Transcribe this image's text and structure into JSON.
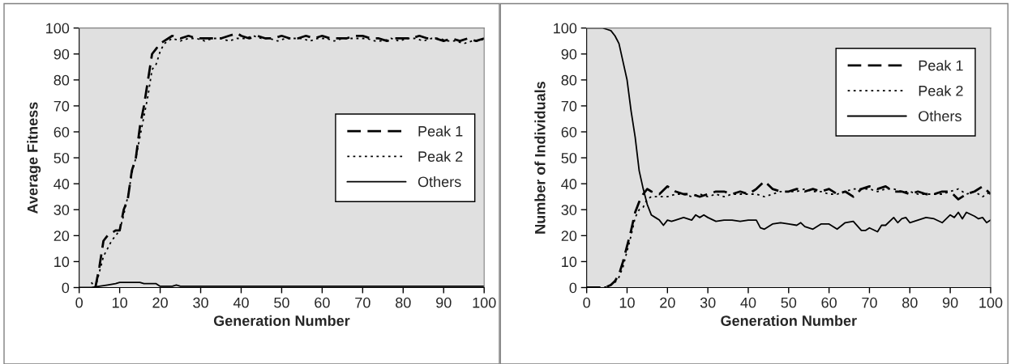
{
  "chart_data": [
    {
      "type": "line",
      "xlabel": "Generation Number",
      "ylabel": "Average Fitness",
      "xlim": [
        0,
        100
      ],
      "ylim": [
        0,
        100
      ],
      "xticks": [
        0,
        10,
        20,
        30,
        40,
        50,
        60,
        70,
        80,
        90,
        100
      ],
      "yticks": [
        0,
        10,
        20,
        30,
        40,
        50,
        60,
        70,
        80,
        90,
        100
      ],
      "grid": false,
      "legend": "right",
      "marker": "none",
      "series": [
        {
          "name": "Peak 1",
          "color": "#000000",
          "line_style": "dashed",
          "x": [
            4,
            5,
            6,
            7,
            8,
            9,
            10,
            11,
            12,
            13,
            14,
            15,
            16,
            17,
            18,
            19,
            20,
            21,
            22,
            23,
            25,
            27,
            29,
            31,
            33,
            35,
            37,
            39,
            40,
            42,
            44,
            46,
            48,
            50,
            52,
            54,
            56,
            58,
            60,
            62,
            64,
            66,
            68,
            70,
            72,
            74,
            76,
            78,
            80,
            82,
            84,
            86,
            88,
            90,
            92,
            94,
            96,
            98,
            100
          ],
          "values": [
            0,
            8,
            18,
            20,
            21,
            22,
            22,
            30,
            34,
            45,
            50,
            62,
            70,
            80,
            90,
            92,
            94,
            95,
            96,
            97,
            96,
            97,
            96,
            96,
            96,
            96,
            97,
            98,
            97,
            96,
            97,
            96,
            96,
            97,
            96,
            96,
            97,
            96,
            97,
            96,
            96,
            96,
            97,
            97,
            96,
            96,
            95,
            96,
            96,
            96,
            97,
            96,
            96,
            95,
            96,
            95,
            96,
            95,
            96
          ]
        },
        {
          "name": "Peak 2",
          "color": "#000000",
          "line_style": "dotted",
          "x": [
            3,
            4,
            5,
            6,
            7,
            8,
            9,
            10,
            11,
            12,
            13,
            14,
            15,
            16,
            17,
            18,
            19,
            20,
            21,
            22,
            23,
            25,
            27,
            29,
            31,
            33,
            35,
            37,
            39,
            41,
            43,
            45,
            47,
            49,
            51,
            53,
            55,
            57,
            59,
            61,
            63,
            65,
            67,
            69,
            71,
            73,
            75,
            77,
            79,
            81,
            83,
            85,
            87,
            89,
            91,
            93,
            95,
            97,
            99,
            100
          ],
          "values": [
            2,
            0,
            6,
            12,
            15,
            18,
            20,
            22,
            28,
            35,
            44,
            50,
            58,
            66,
            74,
            84,
            86,
            91,
            94,
            95,
            96,
            95,
            96,
            96,
            95,
            96,
            96,
            95,
            96,
            96,
            97,
            96,
            96,
            95,
            96,
            96,
            96,
            95,
            96,
            96,
            95,
            96,
            96,
            96,
            96,
            95,
            95,
            96,
            95,
            96,
            96,
            95,
            96,
            96,
            95,
            95,
            94,
            95,
            95,
            96
          ]
        },
        {
          "name": "Others",
          "color": "#000000",
          "line_style": "solid",
          "x": [
            0,
            3,
            5,
            7,
            9,
            10,
            15,
            16,
            19,
            20,
            23,
            24,
            25,
            30,
            40,
            50,
            60,
            70,
            80,
            90,
            100
          ],
          "values": [
            0,
            0,
            0.5,
            1,
            1.5,
            2,
            2,
            1.5,
            1.5,
            0.5,
            0.5,
            1,
            0.5,
            0.5,
            0.5,
            0.5,
            0.5,
            0.5,
            0.5,
            0.5,
            0.5
          ]
        }
      ]
    },
    {
      "type": "line",
      "xlabel": "Generation Number",
      "ylabel": "Number of Individuals",
      "xlim": [
        0,
        100
      ],
      "ylim": [
        0,
        100
      ],
      "xticks": [
        0,
        10,
        20,
        30,
        40,
        50,
        60,
        70,
        80,
        90,
        100
      ],
      "yticks": [
        0,
        10,
        20,
        30,
        40,
        50,
        60,
        70,
        80,
        90,
        100
      ],
      "grid": false,
      "legend": "top right",
      "marker": "none",
      "series": [
        {
          "name": "Peak 1",
          "color": "#000000",
          "line_style": "dashed",
          "x": [
            0,
            4,
            5,
            6,
            7,
            8,
            9,
            10,
            11,
            12,
            13,
            14,
            15,
            16,
            18,
            20,
            22,
            24,
            26,
            28,
            30,
            32,
            34,
            36,
            38,
            40,
            42,
            44,
            46,
            48,
            50,
            52,
            54,
            56,
            58,
            60,
            62,
            64,
            66,
            68,
            70,
            72,
            74,
            76,
            78,
            80,
            82,
            84,
            86,
            88,
            90,
            92,
            94,
            96,
            98,
            100
          ],
          "values": [
            0,
            0,
            0.3,
            1,
            2.5,
            5,
            10,
            16,
            22,
            29,
            33,
            36,
            38,
            37,
            36,
            39,
            37,
            36,
            36,
            35,
            36,
            37,
            37,
            36,
            37,
            36,
            38,
            41,
            38,
            37,
            37,
            38,
            37,
            38,
            37,
            38,
            36,
            37,
            35,
            38,
            39,
            38,
            39,
            37,
            37,
            36,
            37,
            36,
            36,
            37,
            37,
            34,
            36,
            37,
            39,
            36
          ]
        },
        {
          "name": "Peak 2",
          "color": "#000000",
          "line_style": "dotted",
          "x": [
            0,
            4,
            5,
            6,
            7,
            8,
            9,
            10,
            11,
            12,
            13,
            14,
            15,
            16,
            18,
            20,
            22,
            24,
            26,
            28,
            30,
            32,
            34,
            36,
            38,
            40,
            42,
            44,
            46,
            48,
            50,
            52,
            54,
            56,
            58,
            60,
            62,
            64,
            66,
            68,
            70,
            72,
            74,
            76,
            78,
            80,
            82,
            84,
            86,
            88,
            90,
            92,
            94,
            96,
            98,
            100
          ],
          "values": [
            0,
            0,
            0.3,
            1,
            2,
            4,
            8,
            14,
            20,
            27,
            30,
            31,
            34,
            35,
            35,
            35,
            36,
            36,
            35,
            36,
            35,
            36,
            35,
            36,
            36,
            36,
            36,
            35,
            36,
            37,
            37,
            37,
            38,
            37,
            37,
            36,
            36,
            37,
            38,
            38,
            38,
            37,
            38,
            38,
            37,
            37,
            36,
            36,
            36,
            36,
            37,
            38,
            36,
            37,
            35,
            37
          ]
        },
        {
          "name": "Others",
          "color": "#000000",
          "line_style": "solid",
          "x": [
            0,
            4,
            5,
            6,
            7,
            8,
            9,
            10,
            11,
            12,
            13,
            14,
            15,
            16,
            17,
            18,
            19,
            20,
            21,
            22,
            24,
            26,
            27,
            28,
            29,
            30,
            32,
            34,
            36,
            38,
            40,
            42,
            43,
            44,
            46,
            48,
            50,
            52,
            53,
            54,
            56,
            58,
            60,
            62,
            64,
            66,
            68,
            69,
            70,
            72,
            73,
            74,
            76,
            77,
            78,
            79,
            80,
            82,
            84,
            86,
            88,
            90,
            91,
            92,
            93,
            94,
            96,
            97,
            98,
            99,
            100
          ],
          "values": [
            100,
            100,
            99.5,
            99,
            97,
            94,
            87,
            80,
            68,
            58,
            45,
            38,
            32,
            28,
            27,
            26,
            24,
            26,
            25.5,
            26,
            27,
            26,
            28,
            27,
            28,
            27,
            25.5,
            26,
            26,
            25.5,
            26,
            26,
            23,
            22.5,
            24.5,
            25,
            24.5,
            24,
            25,
            23.5,
            22.5,
            24.5,
            24.5,
            22.5,
            25,
            25.5,
            22,
            22,
            23,
            21.5,
            24,
            24,
            27,
            25,
            26.5,
            27,
            25,
            26,
            27,
            26.5,
            25,
            28,
            27,
            29,
            26.5,
            29,
            27.5,
            26.5,
            27,
            25,
            26
          ]
        }
      ]
    }
  ]
}
